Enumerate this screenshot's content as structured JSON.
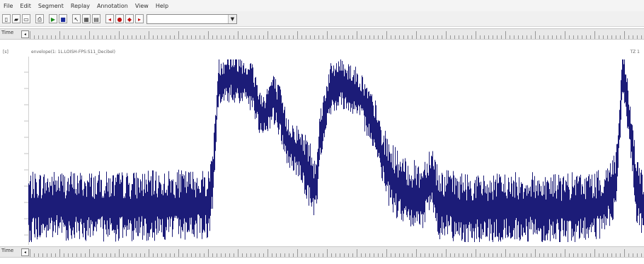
{
  "menu": [
    "File",
    "Edit",
    "Segment",
    "Replay",
    "Annotation",
    "View",
    "Help"
  ],
  "toolbar": {
    "buttons": [
      {
        "name": "new-file-icon",
        "glyph": "▯"
      },
      {
        "name": "open-file-icon",
        "glyph": "▰"
      },
      {
        "name": "save-file-icon",
        "glyph": "▭"
      },
      {
        "name": "print-icon",
        "glyph": "⎙"
      },
      {
        "name": "play-icon",
        "glyph": "▶",
        "color": "#1a8a1a"
      },
      {
        "name": "stop-icon",
        "glyph": "■",
        "color": "#1a2a9a"
      },
      {
        "name": "zoom-icon",
        "glyph": "↖"
      },
      {
        "name": "grid-icon",
        "glyph": "▦"
      },
      {
        "name": "table-icon",
        "glyph": "▤"
      },
      {
        "name": "marker-prev-icon",
        "glyph": "◂",
        "color": "#c01010"
      },
      {
        "name": "marker-icon",
        "glyph": "●",
        "color": "#c01010"
      },
      {
        "name": "marker-down-icon",
        "glyph": "◆",
        "color": "#c01010"
      },
      {
        "name": "marker-next-icon",
        "glyph": "▸",
        "color": "#c01010"
      }
    ],
    "combo_value": ""
  },
  "top_ruler": {
    "label": "Time",
    "button": "◂"
  },
  "bottom_ruler": {
    "label": "Time",
    "button": "◂"
  },
  "channel": {
    "label": "[s]",
    "title": "envelope(1: 1L.LOISH-FPS:S11_Decibel)",
    "right_label": "TZ 1"
  },
  "colors": {
    "signal": "#1c1c78",
    "ruler_bg": "#e8e8e8"
  }
}
